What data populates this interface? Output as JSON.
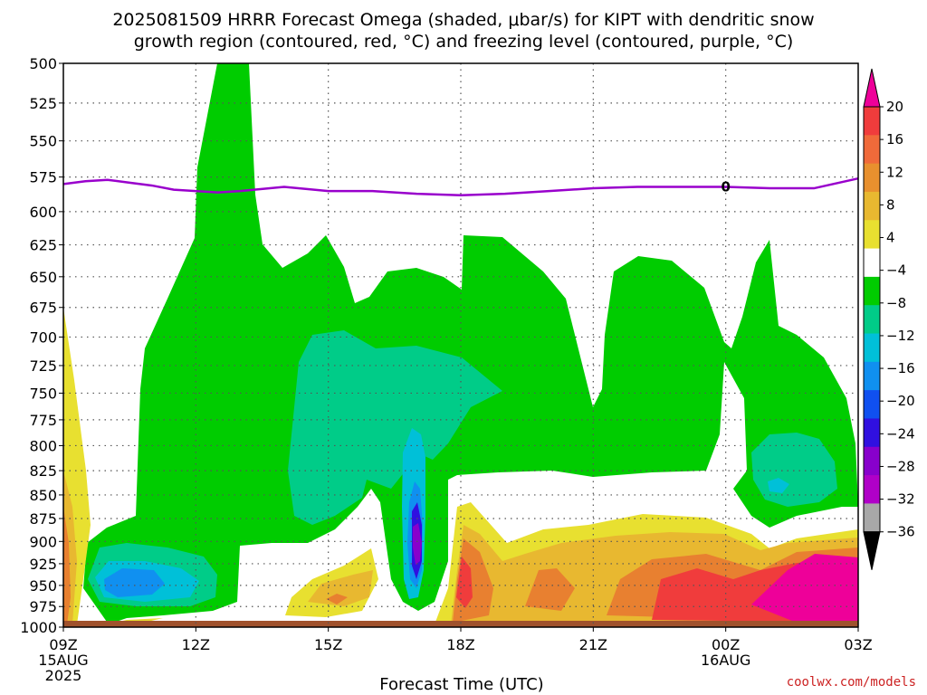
{
  "title": {
    "line1": "2025081509 HRRR Forecast Omega (shaded, μbar/s) for KIPT with dendritic snow",
    "line2": "growth region (contoured, red, °C) and freezing level (contoured, purple, °C)"
  },
  "credit": "coolwx.com/models",
  "colors": {
    "green": "#00cc00",
    "teal": "#00cc88",
    "cyan": "#00c0d8",
    "blue1": "#1090f0",
    "blue2": "#1050f0",
    "indigo": "#3010e0",
    "purple": "#8800cc",
    "yellow_light": "#e8e030",
    "yellow": "#e8c028",
    "orange_light": "#e8a030",
    "orange": "#e88030",
    "red": "#f03c3c",
    "magenta": "#ee0099",
    "freezing_line": "#9900cc",
    "ground": "#a0522d"
  },
  "chart_data": {
    "type": "heatmap",
    "xlabel": "Forecast Time (UTC)",
    "x_ticks": [
      {
        "label": "09Z",
        "sub": [
          "15AUG",
          "2025"
        ]
      },
      {
        "label": "12Z",
        "sub": []
      },
      {
        "label": "15Z",
        "sub": []
      },
      {
        "label": "18Z",
        "sub": []
      },
      {
        "label": "21Z",
        "sub": []
      },
      {
        "label": "00Z",
        "sub": [
          "16AUG"
        ]
      },
      {
        "label": "03Z",
        "sub": []
      }
    ],
    "y_ticks": [
      "500",
      "525",
      "550",
      "575",
      "600",
      "625",
      "650",
      "675",
      "700",
      "725",
      "750",
      "775",
      "800",
      "825",
      "850",
      "875",
      "900",
      "925",
      "950",
      "975",
      "1000"
    ],
    "ylim": [
      1000,
      500
    ],
    "y_scale": "log-pressure",
    "grid": true,
    "freezing_level": {
      "label": "0",
      "x_hours": [
        0,
        0.5,
        1,
        1.5,
        2,
        2.5,
        3,
        3.5,
        4,
        5,
        6,
        7,
        8,
        9,
        10,
        11,
        12,
        13,
        14,
        15,
        16,
        17,
        18
      ],
      "pressure": [
        580,
        578,
        577,
        579,
        581,
        584,
        585,
        586,
        585,
        582,
        585,
        585,
        587,
        588,
        587,
        585,
        583,
        582,
        582,
        582,
        583,
        583,
        576
      ]
    },
    "colorbar": {
      "labels": [
        "20",
        "16",
        "12",
        "8",
        "4",
        "−4",
        "−8",
        "−12",
        "−16",
        "−20",
        "−24",
        "−28",
        "−32",
        "−36"
      ],
      "segments": [
        "#f03c3c",
        "#f06a3a",
        "#e8902e",
        "#e8b830",
        "#e8e030",
        "#ffffff",
        "#00cc00",
        "#00cc88",
        "#00c0d8",
        "#1090f0",
        "#1050f0",
        "#3010e0",
        "#8800cc",
        "#b000c8",
        "#a8a8a8"
      ],
      "top_arrow": "#ee0099",
      "bottom_arrow": "#000000"
    }
  }
}
